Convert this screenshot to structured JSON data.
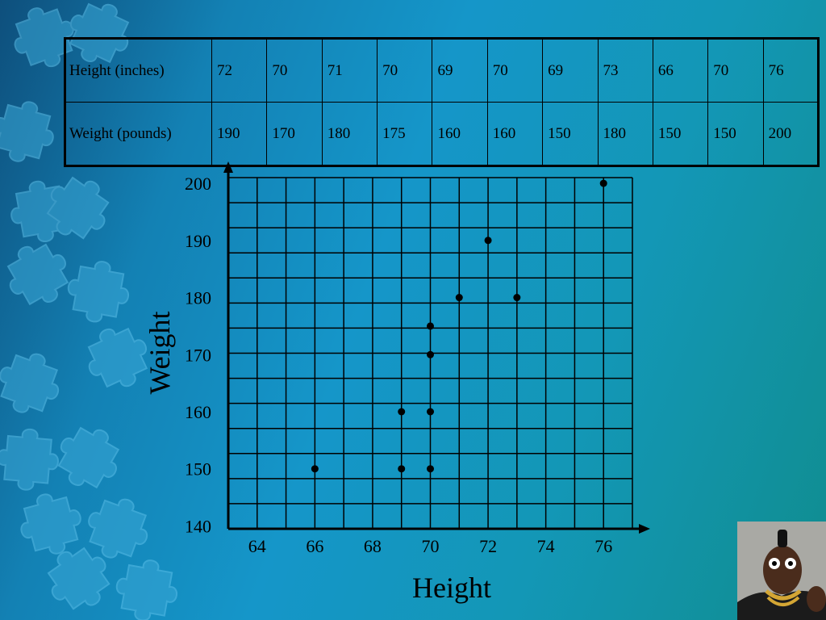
{
  "table": {
    "rows": [
      {
        "label": "Height (inches)",
        "values": [
          "72",
          "70",
          "71",
          "70",
          "69",
          "70",
          "69",
          "73",
          "66",
          "70",
          "76"
        ]
      },
      {
        "label": "Weight (pounds)",
        "values": [
          "190",
          "170",
          "180",
          "175",
          "160",
          "160",
          "150",
          "180",
          "150",
          "150",
          "200"
        ]
      }
    ]
  },
  "chart_data": {
    "type": "scatter",
    "xlabel": "Height",
    "ylabel": "Weight",
    "xticks": [
      "64",
      "66",
      "68",
      "70",
      "72",
      "74",
      "76"
    ],
    "yticks": [
      "140",
      "150",
      "160",
      "170",
      "180",
      "190",
      "200"
    ],
    "xlim": [
      63,
      77
    ],
    "ylim": [
      139.5,
      201
    ],
    "grid": true,
    "points": [
      {
        "x": 72,
        "y": 190
      },
      {
        "x": 70,
        "y": 170
      },
      {
        "x": 71,
        "y": 180
      },
      {
        "x": 70,
        "y": 175
      },
      {
        "x": 69,
        "y": 160
      },
      {
        "x": 70,
        "y": 160
      },
      {
        "x": 69,
        "y": 150
      },
      {
        "x": 73,
        "y": 180
      },
      {
        "x": 66,
        "y": 150
      },
      {
        "x": 70,
        "y": 150
      },
      {
        "x": 76,
        "y": 200
      }
    ]
  },
  "colors": {
    "background_start": "#0e4f7c",
    "background_end": "#108d8f",
    "ink": "#000000",
    "puzzle": "#3aa7d6"
  },
  "icons": {
    "background_art": "puzzle-pieces-icon",
    "photo": "person-pointing-photo"
  }
}
